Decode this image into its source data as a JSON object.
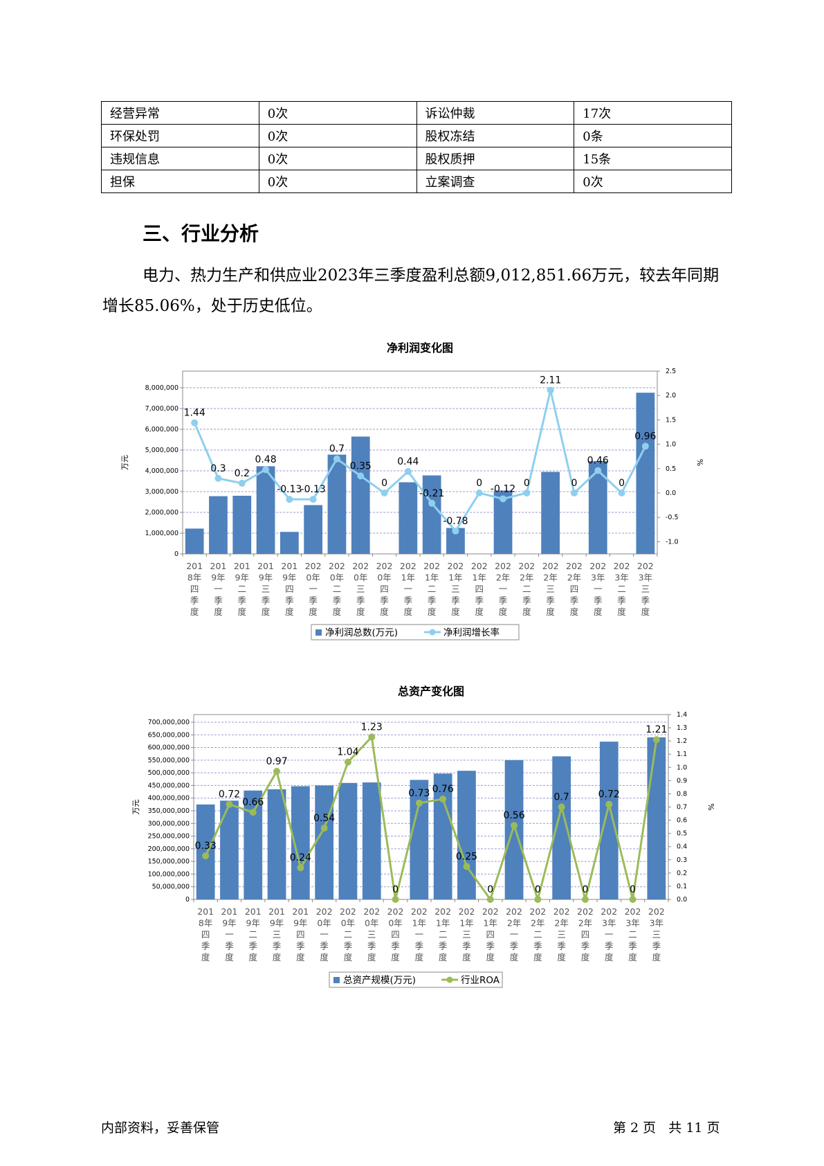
{
  "risk_table": [
    [
      {
        "label": "经营异常",
        "value": "0次"
      },
      {
        "label": "诉讼仲裁",
        "value": "17次"
      }
    ],
    [
      {
        "label": "环保处罚",
        "value": "0次"
      },
      {
        "label": "股权冻结",
        "value": "0条"
      }
    ],
    [
      {
        "label": "违规信息",
        "value": "0次"
      },
      {
        "label": "股权质押",
        "value": "15条"
      }
    ],
    [
      {
        "label": "担保",
        "value": "0次"
      },
      {
        "label": "立案调查",
        "value": "0次"
      }
    ]
  ],
  "section": {
    "title": "三、行业分析",
    "paragraph": "电力、热力生产和供应业2023年三季度盈利总额9,012,851.66万元，较去年同期增长85.06%，处于历史低位。"
  },
  "chart_data": [
    {
      "type": "bar",
      "title": "净利润变化图",
      "categories": [
        "2018年四季度",
        "2019年一季度",
        "2019年二季度",
        "2019年三季度",
        "2019年四季度",
        "2020年一季度",
        "2020年二季度",
        "2020年三季度",
        "2020年四季度",
        "2021年一季度",
        "2021年二季度",
        "2021年三季度",
        "2021年四季度",
        "2022年一季度",
        "2022年二季度",
        "2022年三季度",
        "2022年四季度",
        "2023年一季度",
        "2023年二季度",
        "2023年三季度"
      ],
      "ylabel": "万元",
      "y2label": "%",
      "ylim": [
        0,
        8800000
      ],
      "y2lim": [
        -1.25,
        2.5
      ],
      "yticks": [
        "0",
        "1,000,000",
        "2,000,000",
        "3,000,000",
        "4,000,000",
        "5,000,000",
        "6,000,000",
        "7,000,000",
        "8,000,000"
      ],
      "y2ticks": [
        "-1.0",
        "-0.5",
        "0.0",
        "0.5",
        "1.0",
        "1.5",
        "2.0",
        "2.5"
      ],
      "series": [
        {
          "name": "净利润总数(万元)",
          "kind": "bar",
          "axis": "left",
          "color": "#4f81bd",
          "values": [
            1220000,
            2780000,
            2800000,
            4220000,
            1060000,
            2350000,
            4780000,
            5650000,
            0,
            3450000,
            3780000,
            1250000,
            0,
            3050000,
            0,
            3950000,
            0,
            4470000,
            0,
            7760000
          ]
        },
        {
          "name": "净利润增长率",
          "kind": "line",
          "axis": "right",
          "color": "#8ecfee",
          "values": [
            1.44,
            0.3,
            0.2,
            0.48,
            -0.13,
            -0.13,
            0.7,
            0.35,
            0,
            0.44,
            -0.21,
            -0.78,
            0,
            -0.12,
            0,
            2.11,
            0,
            0.46,
            0,
            0.96
          ],
          "labels": [
            "1.44",
            "0.3",
            "0.2",
            "0.48",
            "-0.13",
            "-0.13",
            "0.7",
            "0.35",
            "0",
            "0.44",
            "-0.21",
            "-0.78",
            "0",
            "-0.12",
            "0",
            "2.11",
            "0",
            "0.46",
            "0",
            "0.96"
          ]
        }
      ],
      "legend": "bottom"
    },
    {
      "type": "bar",
      "title": "总资产变化图",
      "categories": [
        "2018年四季度",
        "2019年一季度",
        "2019年二季度",
        "2019年三季度",
        "2019年四季度",
        "2020年一季度",
        "2020年二季度",
        "2020年三季度",
        "2020年四季度",
        "2021年一季度",
        "2021年二季度",
        "2021年三季度",
        "2021年四季度",
        "2022年一季度",
        "2022年二季度",
        "2022年三季度",
        "2022年四季度",
        "2023年一季度",
        "2023年二季度",
        "2023年三季度"
      ],
      "ylabel": "万元",
      "y2label": "%",
      "ylim": [
        0,
        730000000
      ],
      "y2lim": [
        0,
        1.4
      ],
      "yticks": [
        "0",
        "50,000,000",
        "100,000,000",
        "150,000,000",
        "200,000,000",
        "250,000,000",
        "300,000,000",
        "350,000,000",
        "400,000,000",
        "450,000,000",
        "500,000,000",
        "550,000,000",
        "600,000,000",
        "650,000,000",
        "700,000,000"
      ],
      "y2ticks": [
        "0.0",
        "0.1",
        "0.2",
        "0.3",
        "0.4",
        "0.5",
        "0.6",
        "0.7",
        "0.8",
        "0.9",
        "1.0",
        "1.1",
        "1.2",
        "1.3",
        "1.4"
      ],
      "series": [
        {
          "name": "总资产规模(万元)",
          "kind": "bar",
          "axis": "left",
          "color": "#4f81bd",
          "values": [
            375000000,
            390000000,
            430000000,
            435000000,
            447000000,
            450000000,
            460000000,
            462000000,
            0,
            472000000,
            497000000,
            508000000,
            0,
            550000000,
            0,
            565000000,
            0,
            623000000,
            0,
            640000000
          ]
        },
        {
          "name": "行业ROA",
          "kind": "line",
          "axis": "right",
          "color": "#9bbb59",
          "values": [
            0.33,
            0.72,
            0.66,
            0.97,
            0.24,
            0.54,
            1.04,
            1.23,
            0,
            0.73,
            0.76,
            0.25,
            0,
            0.56,
            0,
            0.7,
            0,
            0.72,
            0,
            1.21
          ],
          "labels": [
            "0.33",
            "0.72",
            "0.66",
            "0.97",
            "0.24",
            "0.54",
            "1.04",
            "1.23",
            "0",
            "0.73",
            "0.76",
            "0.25",
            "0",
            "0.56",
            "0",
            "0.7",
            "0",
            "0.72",
            "0",
            "1.21"
          ]
        }
      ],
      "legend": "bottom"
    }
  ],
  "footer": {
    "left": "内部资料，妥善保管",
    "right": "第 2 页   共 11 页"
  }
}
